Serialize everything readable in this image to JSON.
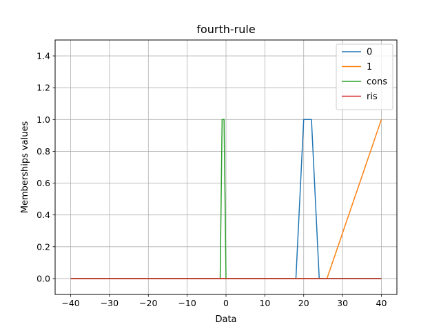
{
  "chart_data": {
    "type": "line",
    "title": "fourth-rule",
    "xlabel": "Data",
    "ylabel": "Memberships values",
    "xlim": [
      -44,
      44
    ],
    "ylim": [
      -0.1,
      1.5
    ],
    "xticks": [
      -40,
      -30,
      -20,
      -10,
      0,
      10,
      20,
      30,
      40
    ],
    "yticks": [
      0.0,
      0.2,
      0.4,
      0.6,
      0.8,
      1.0,
      1.2,
      1.4
    ],
    "xtick_labels": [
      "−40",
      "−30",
      "−20",
      "−10",
      "0",
      "10",
      "20",
      "30",
      "40"
    ],
    "ytick_labels": [
      "0.0",
      "0.2",
      "0.4",
      "0.6",
      "0.8",
      "1.0",
      "1.2",
      "1.4"
    ],
    "grid": true,
    "legend_position": "top-right",
    "series": [
      {
        "name": "0",
        "color": "#1f77b4",
        "x": [
          -40,
          18,
          20,
          22,
          24,
          40
        ],
        "y": [
          0,
          0,
          1,
          1,
          0,
          0
        ]
      },
      {
        "name": "1",
        "color": "#ff7f0e",
        "x": [
          -40,
          26,
          40
        ],
        "y": [
          0,
          0,
          1
        ]
      },
      {
        "name": "cons",
        "color": "#2ca02c",
        "x": [
          -40,
          -1.5,
          -1,
          -0.5,
          0,
          40
        ],
        "y": [
          0,
          0,
          1,
          1,
          0,
          0
        ]
      },
      {
        "name": "ris",
        "color": "#d62728",
        "x": [
          -40,
          40
        ],
        "y": [
          0,
          0
        ]
      }
    ]
  }
}
